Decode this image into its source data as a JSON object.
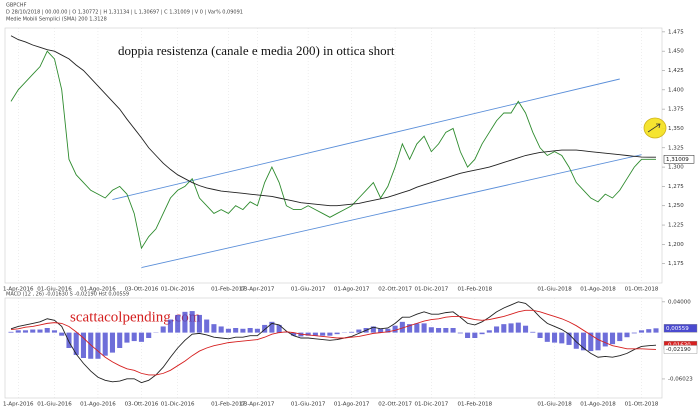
{
  "chart_data": [
    {
      "type": "line",
      "header_lines": [
        "GBPCHF",
        "D 28/10/2018 | 00.00.00 | O 1,30772 | H 1,31134 | L 1,30697 | C 1,31009 | V 0 | Var% 0,09091",
        "Medie Mobili Semplici (SMA)  200  1,3128"
      ],
      "annotation": "doppia resistenza (canale e media 200) in ottica short",
      "last_value_label": "1,31009",
      "categories": [
        null,
        "1-Apr-2016",
        null,
        null,
        null,
        null,
        "01-Giu-2016",
        null,
        null,
        null,
        null,
        null,
        "01-Ago-2016",
        null,
        null,
        null,
        null,
        null,
        "03-Ott-2016",
        null,
        null,
        null,
        null,
        "01-Dic-2016",
        null,
        null,
        null,
        null,
        null,
        null,
        "01-Feb-2017",
        null,
        null,
        null,
        "03-Apr-2017",
        null,
        null,
        null,
        null,
        null,
        null,
        "01-Giu-2017",
        null,
        null,
        null,
        null,
        null,
        "01-Ago-2017",
        null,
        null,
        null,
        null,
        null,
        "02-Ott-2017",
        null,
        null,
        null,
        null,
        "01-Dic-2017",
        null,
        null,
        null,
        null,
        null,
        "01-Feb-2018",
        null,
        null,
        null,
        null,
        null,
        null,
        null,
        null,
        null,
        null,
        "01-Giu-2018",
        null,
        null,
        null,
        null,
        null,
        "01-Ago-2018",
        null,
        null,
        null,
        null,
        null,
        "01-Ott-2018",
        null,
        null
      ],
      "series": [
        {
          "type": "line",
          "color": "#2e8b2e",
          "values": [
            1.385,
            1.4,
            1.41,
            1.42,
            1.43,
            1.45,
            1.44,
            1.4,
            1.31,
            1.29,
            1.28,
            1.27,
            1.265,
            1.26,
            1.27,
            1.275,
            1.265,
            1.24,
            1.195,
            1.21,
            1.22,
            1.24,
            1.26,
            1.27,
            1.275,
            1.285,
            1.26,
            1.25,
            1.24,
            1.245,
            1.24,
            1.25,
            1.245,
            1.255,
            1.25,
            1.28,
            1.3,
            1.28,
            1.25,
            1.245,
            1.245,
            1.25,
            1.245,
            1.24,
            1.235,
            1.24,
            1.245,
            1.25,
            1.26,
            1.27,
            1.28,
            1.26,
            1.275,
            1.3,
            1.33,
            1.31,
            1.33,
            1.34,
            1.32,
            1.33,
            1.345,
            1.35,
            1.32,
            1.3,
            1.31,
            1.33,
            1.345,
            1.36,
            1.37,
            1.37,
            1.385,
            1.37,
            1.345,
            1.325,
            1.315,
            1.32,
            1.315,
            1.3,
            1.28,
            1.27,
            1.26,
            1.255,
            1.265,
            1.26,
            1.27,
            1.285,
            1.3,
            1.31,
            1.31,
            1.31009
          ]
        },
        {
          "type": "line",
          "color": "#222222",
          "values": [
            1.47,
            1.465,
            1.462,
            1.458,
            1.455,
            1.452,
            1.45,
            1.445,
            1.44,
            1.432,
            1.425,
            1.415,
            1.405,
            1.395,
            1.385,
            1.375,
            1.362,
            1.35,
            1.338,
            1.325,
            1.315,
            1.305,
            1.297,
            1.29,
            1.285,
            1.28,
            1.276,
            1.273,
            1.271,
            1.269,
            1.268,
            1.267,
            1.266,
            1.265,
            1.264,
            1.263,
            1.262,
            1.26,
            1.258,
            1.256,
            1.254,
            1.253,
            1.252,
            1.251,
            1.25,
            1.25,
            1.251,
            1.252,
            1.253,
            1.255,
            1.257,
            1.259,
            1.261,
            1.264,
            1.267,
            1.27,
            1.274,
            1.277,
            1.28,
            1.283,
            1.286,
            1.289,
            1.292,
            1.294,
            1.296,
            1.298,
            1.3,
            1.303,
            1.306,
            1.309,
            1.312,
            1.315,
            1.317,
            1.319,
            1.32,
            1.321,
            1.322,
            1.322,
            1.322,
            1.321,
            1.32,
            1.319,
            1.318,
            1.317,
            1.316,
            1.315,
            1.314,
            1.313,
            1.3128,
            1.3128
          ]
        }
      ],
      "trendlines": [
        {
          "color": "#5b8fd9",
          "points": [
            [
              14,
              1.258
            ],
            [
              84,
              1.414
            ]
          ]
        },
        {
          "color": "#5b8fd9",
          "points": [
            [
              18,
              1.17
            ],
            [
              87,
              1.316
            ]
          ]
        }
      ],
      "ylim": [
        1.15,
        1.48
      ],
      "yticks": [
        {
          "value": 1.475,
          "label": "1,475"
        },
        {
          "value": 1.45,
          "label": "1,450"
        },
        {
          "value": 1.425,
          "label": "1,425"
        },
        {
          "value": 1.4,
          "label": "1,400"
        },
        {
          "value": 1.375,
          "label": "1,375"
        },
        {
          "value": 1.35,
          "label": "1,350"
        },
        {
          "value": 1.325,
          "label": "1,325"
        },
        {
          "value": 1.3,
          "label": "1,300"
        },
        {
          "value": 1.275,
          "label": "1,275"
        },
        {
          "value": 1.25,
          "label": "1,250"
        },
        {
          "value": 1.225,
          "label": "1,225"
        },
        {
          "value": 1.2,
          "label": "1,200"
        },
        {
          "value": 1.175,
          "label": "1,175"
        }
      ],
      "grid": true
    },
    {
      "type": "line",
      "header_lines": [
        "MACD   (12 , 26)   -0,01630   S   -0,02190   Hst   0,00559"
      ],
      "annotation": "scattacolpending.com",
      "categories": [
        null,
        "1-Apr-2016",
        null,
        null,
        null,
        null,
        "01-Giu-2016",
        null,
        null,
        null,
        null,
        null,
        "01-Ago-2016",
        null,
        null,
        null,
        null,
        null,
        "03-Ott-2016",
        null,
        null,
        null,
        null,
        "01-Dic-2016",
        null,
        null,
        null,
        null,
        null,
        null,
        "01-Feb-2017",
        null,
        null,
        null,
        "03-Apr-2017",
        null,
        null,
        null,
        null,
        null,
        null,
        "01-Giu-2017",
        null,
        null,
        null,
        null,
        null,
        "01-Ago-2017",
        null,
        null,
        null,
        null,
        null,
        "02-Ott-2017",
        null,
        null,
        null,
        null,
        "01-Dic-2017",
        null,
        null,
        null,
        null,
        null,
        "01-Feb-2018",
        null,
        null,
        null,
        null,
        null,
        null,
        null,
        null,
        null,
        null,
        "01-Giu-2018",
        null,
        null,
        null,
        null,
        null,
        "01-Ago-2018",
        null,
        null,
        null,
        null,
        null,
        "01-Ott-2018",
        null,
        null
      ],
      "series": [
        {
          "type": "bar",
          "color": "#4a4acf",
          "last_value_label": "0,00559",
          "values": [
            0.001,
            0.003,
            0.003,
            0.004,
            0.004,
            0.006,
            0.003,
            -0.004,
            -0.02,
            -0.029,
            -0.033,
            -0.034,
            -0.034,
            -0.03,
            -0.026,
            -0.02,
            -0.013,
            -0.011,
            -0.012,
            -0.007,
            0.0,
            0.008,
            0.017,
            0.023,
            0.027,
            0.028,
            0.023,
            0.017,
            0.011,
            0.008,
            0.005,
            0.006,
            0.005,
            0.006,
            0.005,
            0.01,
            0.014,
            0.01,
            0.001,
            -0.004,
            -0.005,
            -0.004,
            -0.004,
            -0.004,
            -0.004,
            -0.002,
            0.0,
            0.001,
            0.004,
            0.006,
            0.008,
            0.005,
            0.005,
            0.009,
            0.014,
            0.011,
            0.012,
            0.012,
            0.007,
            0.006,
            0.006,
            0.006,
            -0.001,
            -0.007,
            -0.007,
            -0.002,
            0.003,
            0.008,
            0.011,
            0.012,
            0.013,
            0.009,
            0.001,
            -0.007,
            -0.012,
            -0.013,
            -0.014,
            -0.016,
            -0.021,
            -0.023,
            -0.024,
            -0.023,
            -0.018,
            -0.015,
            -0.011,
            -0.006,
            -0.001,
            0.003,
            0.0045,
            0.00559
          ]
        },
        {
          "type": "line",
          "color": "#222222",
          "last_value_label": "-0,01630",
          "label_fill": "#d62020",
          "values": [
            0.005,
            0.008,
            0.01,
            0.012,
            0.014,
            0.018,
            0.016,
            0.008,
            -0.012,
            -0.028,
            -0.04,
            -0.05,
            -0.058,
            -0.062,
            -0.064,
            -0.063,
            -0.06,
            -0.06,
            -0.065,
            -0.062,
            -0.055,
            -0.045,
            -0.032,
            -0.02,
            -0.01,
            -0.002,
            -0.001,
            -0.003,
            -0.006,
            -0.007,
            -0.008,
            -0.006,
            -0.006,
            -0.004,
            -0.004,
            0.004,
            0.012,
            0.01,
            0.002,
            -0.004,
            -0.007,
            -0.007,
            -0.008,
            -0.009,
            -0.01,
            -0.009,
            -0.007,
            -0.005,
            -0.001,
            0.003,
            0.007,
            0.005,
            0.006,
            0.012,
            0.02,
            0.02,
            0.024,
            0.027,
            0.024,
            0.024,
            0.026,
            0.027,
            0.02,
            0.012,
            0.01,
            0.014,
            0.02,
            0.027,
            0.032,
            0.036,
            0.04,
            0.038,
            0.03,
            0.02,
            0.012,
            0.008,
            0.004,
            -0.002,
            -0.012,
            -0.02,
            -0.027,
            -0.032,
            -0.031,
            -0.032,
            -0.03,
            -0.027,
            -0.022,
            -0.018,
            -0.017,
            -0.0163
          ]
        },
        {
          "type": "line",
          "color": "#d62020",
          "last_value_label": "-0,02190",
          "label_fill": "#ffffff",
          "values": [
            0.004,
            0.005,
            0.007,
            0.008,
            0.01,
            0.012,
            0.013,
            0.012,
            0.008,
            0.001,
            -0.007,
            -0.016,
            -0.024,
            -0.032,
            -0.038,
            -0.043,
            -0.047,
            -0.049,
            -0.053,
            -0.055,
            -0.055,
            -0.053,
            -0.049,
            -0.043,
            -0.037,
            -0.03,
            -0.024,
            -0.02,
            -0.017,
            -0.015,
            -0.013,
            -0.012,
            -0.011,
            -0.01,
            -0.009,
            -0.006,
            -0.002,
            0.0,
            0.001,
            0.0,
            -0.002,
            -0.003,
            -0.004,
            -0.005,
            -0.006,
            -0.007,
            -0.007,
            -0.006,
            -0.005,
            -0.003,
            -0.001,
            0.0,
            0.001,
            0.003,
            0.006,
            0.009,
            0.012,
            0.015,
            0.017,
            0.018,
            0.02,
            0.021,
            0.021,
            0.019,
            0.017,
            0.016,
            0.017,
            0.019,
            0.021,
            0.024,
            0.027,
            0.029,
            0.029,
            0.027,
            0.024,
            0.021,
            0.018,
            0.014,
            0.009,
            0.003,
            -0.003,
            -0.009,
            -0.013,
            -0.017,
            -0.019,
            -0.021,
            -0.021,
            -0.021,
            -0.0215,
            -0.0219
          ]
        }
      ],
      "ylim": [
        -0.085,
        0.045
      ],
      "yticks": [
        {
          "value": 0.04,
          "label": "0,04000"
        },
        {
          "value": -0.06023,
          "label": "-0,06023"
        }
      ],
      "grid": true
    }
  ]
}
